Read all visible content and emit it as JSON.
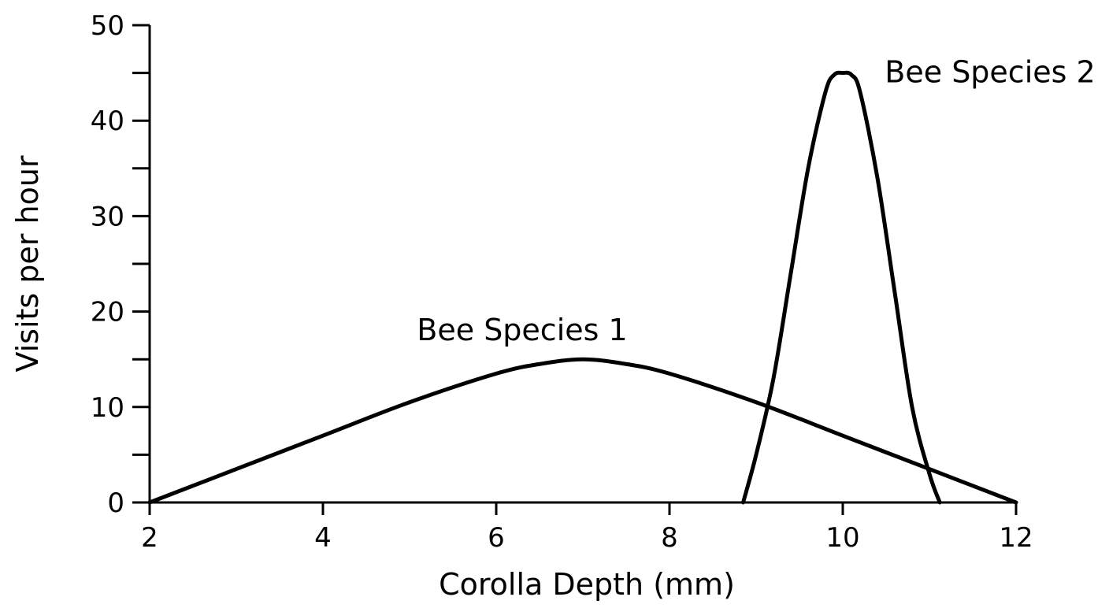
{
  "chart_data": {
    "type": "line",
    "title": "",
    "xlabel": "Corolla Depth (mm)",
    "ylabel": "Visits per hour",
    "xlim": [
      2,
      12
    ],
    "ylim": [
      0,
      50
    ],
    "x_ticks": [
      2,
      4,
      6,
      8,
      10,
      12
    ],
    "x_tick_labels": [
      "2",
      "4",
      "6",
      "8",
      "10",
      "12"
    ],
    "y_ticks": [
      0,
      10,
      20,
      30,
      40,
      50
    ],
    "y_tick_labels": [
      "0",
      "10",
      "20",
      "30",
      "40",
      "50"
    ],
    "y_minor_step": 5,
    "grid": false,
    "legend": "none",
    "line_color": "#000000",
    "series": [
      {
        "name": "Bee Species 1",
        "x": [
          2,
          3,
          4,
          5,
          6,
          6.5,
          7,
          7.5,
          8,
          9,
          10,
          11,
          12
        ],
        "y": [
          0,
          3.5,
          7,
          10.5,
          13.5,
          14.5,
          15,
          14.5,
          13.5,
          10.5,
          7,
          3.5,
          0
        ]
      },
      {
        "name": "Bee Species 2",
        "x": [
          8.85,
          9.0,
          9.2,
          9.4,
          9.6,
          9.8,
          9.9,
          10.0,
          10.1,
          10.2,
          10.4,
          10.6,
          10.8,
          11.0,
          11.12
        ],
        "y": [
          0,
          5,
          13,
          24,
          35,
          43,
          44.8,
          45,
          44.8,
          43,
          34,
          22,
          10,
          3,
          0
        ]
      }
    ],
    "annotations": [
      {
        "text": "Bee Species 1",
        "x": 6.3,
        "y": 17
      },
      {
        "text": "Bee Species 2",
        "x": 11.7,
        "y": 44
      }
    ]
  }
}
